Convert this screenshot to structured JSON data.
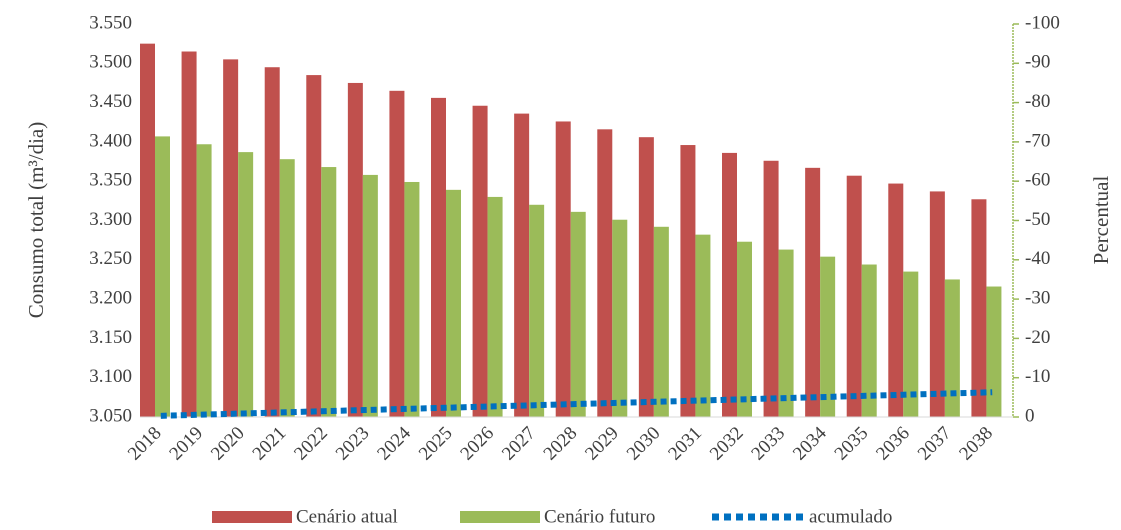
{
  "chart_data": {
    "type": "bar",
    "categories": [
      "2018",
      "2019",
      "2020",
      "2021",
      "2022",
      "2023",
      "2024",
      "2025",
      "2026",
      "2027",
      "2028",
      "2029",
      "2030",
      "2031",
      "2032",
      "2033",
      "2034",
      "2035",
      "2036",
      "2037",
      "2038"
    ],
    "y_label": "Consumo total (m³/dia)",
    "y2_label": "Percentual",
    "series": [
      {
        "name": "Cenário atual",
        "type": "bar",
        "color": "#c0504d",
        "values": [
          3525,
          3515,
          3505,
          3495,
          3485,
          3475,
          3465,
          3456,
          3446,
          3436,
          3426,
          3416,
          3406,
          3396,
          3386,
          3376,
          3367,
          3357,
          3347,
          3337,
          3327
        ]
      },
      {
        "name": "Cenário futuro",
        "type": "bar",
        "color": "#9bbb59",
        "values": [
          3407,
          3397,
          3387,
          3378,
          3368,
          3358,
          3349,
          3339,
          3330,
          3320,
          3311,
          3301,
          3292,
          3282,
          3273,
          3263,
          3254,
          3244,
          3235,
          3225,
          3216
        ]
      },
      {
        "name": "acumulado",
        "type": "line",
        "axis": "y2",
        "color": "#0070c0",
        "values": [
          -0.3,
          -0.6,
          -0.9,
          -1.2,
          -1.5,
          -1.8,
          -2.1,
          -2.4,
          -2.7,
          -3.0,
          -3.3,
          -3.6,
          -3.9,
          -4.2,
          -4.5,
          -4.8,
          -5.1,
          -5.4,
          -5.7,
          -6.0,
          -6.3
        ]
      }
    ],
    "ylim": [
      3050,
      3550
    ],
    "yticks": [
      {
        "value": 3050,
        "label": "3.050"
      },
      {
        "value": 3100,
        "label": "3.100"
      },
      {
        "value": 3150,
        "label": "3.150"
      },
      {
        "value": 3200,
        "label": "3.200"
      },
      {
        "value": 3250,
        "label": "3.250"
      },
      {
        "value": 3300,
        "label": "3.300"
      },
      {
        "value": 3350,
        "label": "3.350"
      },
      {
        "value": 3400,
        "label": "3.400"
      },
      {
        "value": 3450,
        "label": "3.450"
      },
      {
        "value": 3500,
        "label": "3.500"
      },
      {
        "value": 3550,
        "label": "3.550"
      }
    ],
    "y2lim": [
      0,
      -100
    ],
    "y2ticks": [
      0,
      -10,
      -20,
      -30,
      -40,
      -50,
      -60,
      -70,
      -80,
      -90,
      -100
    ],
    "y2_axis_color": "#9bbb59",
    "legend": "bottom"
  }
}
